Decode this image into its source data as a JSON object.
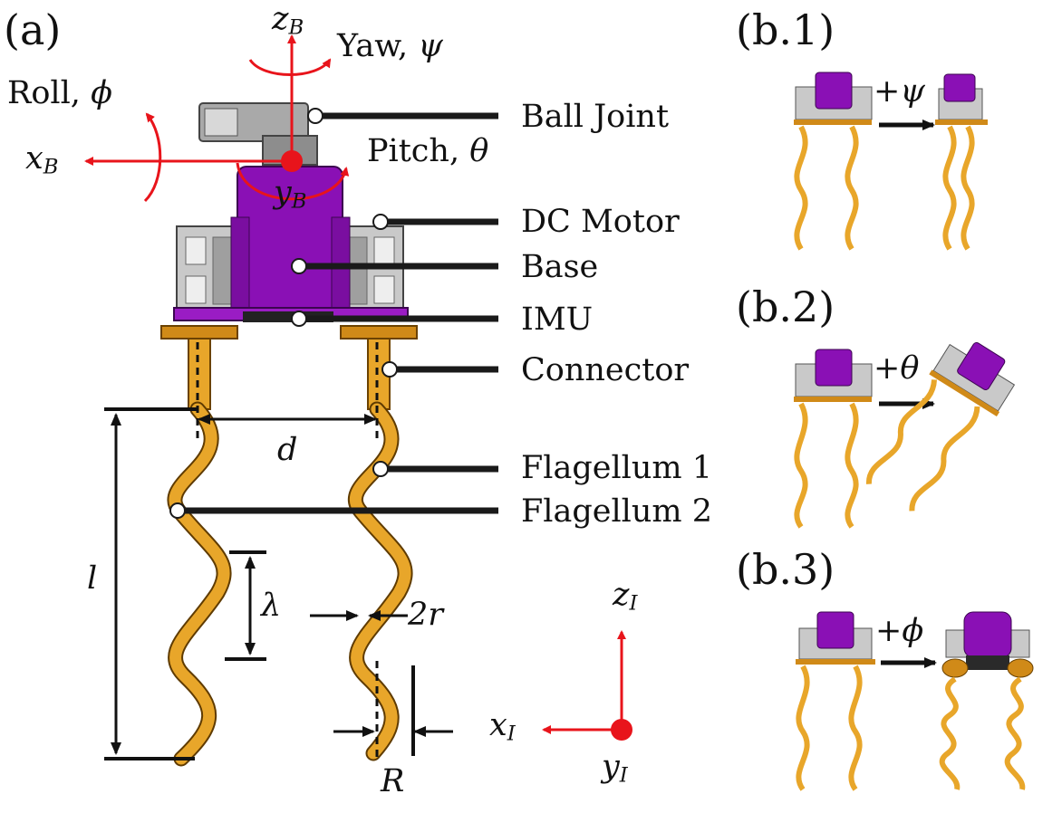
{
  "panels": {
    "a": "(a)",
    "b1": "(b.1)",
    "b2": "(b.2)",
    "b3": "(b.3)"
  },
  "callouts": [
    "Ball Joint",
    "DC Motor",
    "Base",
    "IMU",
    "Connector",
    "Flagellum 1",
    "Flagellum 2"
  ],
  "rotations": {
    "yaw": {
      "text": "Yaw, ",
      "symbol": "ψ"
    },
    "roll": {
      "text": "Roll, ",
      "symbol": "ϕ"
    },
    "pitch": {
      "text": "Pitch, ",
      "symbol": "θ"
    }
  },
  "body_axes": {
    "z": {
      "base": "z",
      "sub": "B"
    },
    "x": {
      "base": "x",
      "sub": "B"
    },
    "y": {
      "base": "y",
      "sub": "B"
    }
  },
  "inertial_axes": {
    "z": {
      "base": "z",
      "sub": "I"
    },
    "x": {
      "base": "x",
      "sub": "I"
    },
    "y": {
      "base": "y",
      "sub": "I"
    }
  },
  "dimensions": {
    "d": "d",
    "l": "l",
    "lambda": "λ",
    "two_r": "2r",
    "R": "R"
  },
  "motions": {
    "b1": "+ψ",
    "b2": "+θ",
    "b3": "+ϕ"
  },
  "colors": {
    "axis_red": "#e8141b",
    "motor_purple": "#8a10b5",
    "flagella_orange": "#e8a62a",
    "metal_gray": "#bfbfbf",
    "leader_black": "#1a1a1a"
  }
}
